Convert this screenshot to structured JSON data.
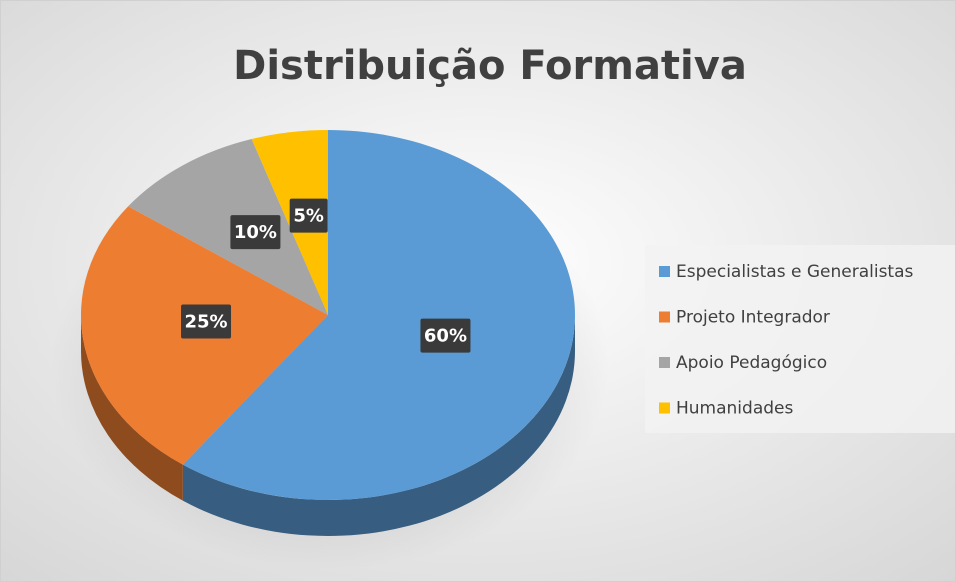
{
  "chart_data": {
    "type": "pie",
    "title": "Distribuição Formativa",
    "categories": [
      "Especialistas e Generalistas",
      "Projeto Integrador",
      "Apoio Pedagógico",
      "Humanidades"
    ],
    "values": [
      60,
      25,
      10,
      5
    ],
    "value_labels": [
      "60%",
      "25%",
      "10%",
      "5%"
    ],
    "colors": [
      "#5b9bd5",
      "#ed7d31",
      "#a5a5a5",
      "#ffc000"
    ],
    "legend": "right"
  }
}
